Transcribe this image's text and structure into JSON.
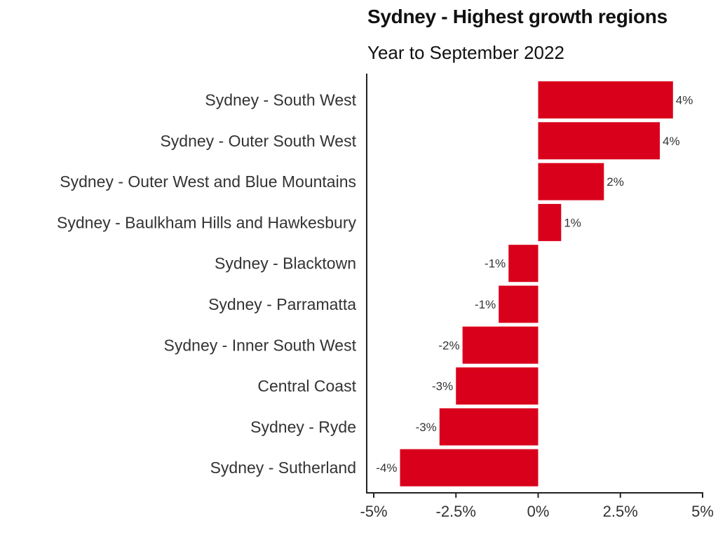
{
  "chart_data": {
    "type": "bar",
    "orientation": "horizontal",
    "title": "Sydney - Highest growth regions",
    "subtitle": "Year to September 2022",
    "categories": [
      "Sydney - South West",
      "Sydney - Outer South West",
      "Sydney - Outer West and Blue Mountains",
      "Sydney - Baulkham Hills and Hawkesbury",
      "Sydney - Blacktown",
      "Sydney - Parramatta",
      "Sydney - Inner South West",
      "Central Coast",
      "Sydney - Ryde",
      "Sydney - Sutherland"
    ],
    "values": [
      4.1,
      3.7,
      2.0,
      0.7,
      -0.9,
      -1.2,
      -2.3,
      -2.5,
      -3.0,
      -4.2
    ],
    "data_labels": [
      "4%",
      "4%",
      "2%",
      "1%",
      "-1%",
      "-1%",
      "-2%",
      "-3%",
      "-3%",
      "-4%"
    ],
    "xlim": [
      -5,
      5
    ],
    "x_ticks": [
      -5,
      -2.5,
      0,
      2.5,
      5
    ],
    "x_tick_labels": [
      "-5%",
      "-2.5%",
      "0%",
      "2.5%",
      "5%"
    ],
    "bar_color": "#d9001b",
    "grid": false,
    "legend": "none"
  }
}
